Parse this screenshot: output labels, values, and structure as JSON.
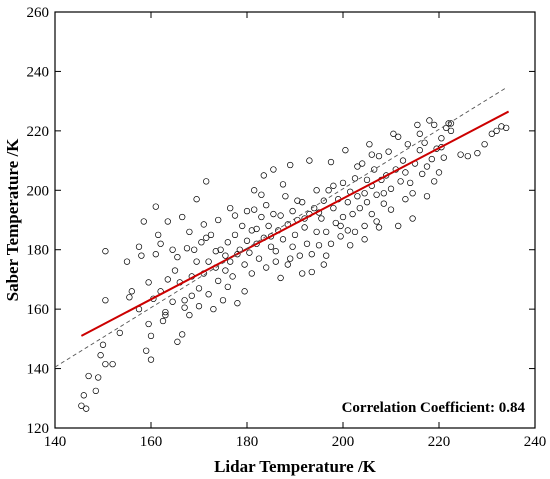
{
  "chart_data": {
    "type": "scatter",
    "title": "",
    "xlabel": "Lidar Temperature /K",
    "ylabel": "Saber Temperature /K",
    "xlim": [
      140,
      240
    ],
    "ylim": [
      120,
      260
    ],
    "xticks": [
      140,
      160,
      180,
      200,
      220,
      240
    ],
    "yticks": [
      120,
      140,
      160,
      180,
      200,
      220,
      240,
      260
    ],
    "grid": false,
    "legend": "none",
    "annotation": "Correlation Coefficient: 0.84",
    "series": [
      {
        "kind": "points",
        "marker": "open-circle",
        "color": "#000000",
        "points": [
          [
            145.5,
            127.5
          ],
          [
            146.0,
            131.0
          ],
          [
            146.5,
            126.5
          ],
          [
            147.0,
            137.5
          ],
          [
            148.5,
            132.5
          ],
          [
            149.0,
            137.0
          ],
          [
            149.5,
            144.5
          ],
          [
            150.0,
            148.0
          ],
          [
            150.5,
            163.0
          ],
          [
            150.5,
            179.5
          ],
          [
            152.0,
            141.5
          ],
          [
            153.5,
            152.0
          ],
          [
            155.0,
            176.0
          ],
          [
            156.0,
            166.0
          ],
          [
            157.5,
            160.0
          ],
          [
            157.5,
            181.0
          ],
          [
            158.0,
            178.0
          ],
          [
            159.0,
            146.0
          ],
          [
            159.5,
            155.0
          ],
          [
            159.5,
            169.0
          ],
          [
            160.0,
            143.0
          ],
          [
            160.0,
            151.0
          ],
          [
            160.5,
            163.5
          ],
          [
            161.0,
            194.5
          ],
          [
            161.5,
            185.0
          ],
          [
            162.0,
            166.0
          ],
          [
            162.0,
            182.0
          ],
          [
            162.5,
            156.0
          ],
          [
            163.0,
            159.0
          ],
          [
            163.5,
            170.0
          ],
          [
            163.5,
            189.5
          ],
          [
            164.5,
            180.0
          ],
          [
            164.5,
            162.5
          ],
          [
            165.5,
            149.0
          ],
          [
            165.0,
            173.0
          ],
          [
            166.0,
            169.0
          ],
          [
            166.5,
            191.0
          ],
          [
            167.0,
            160.5
          ],
          [
            167.0,
            163.0
          ],
          [
            167.5,
            180.5
          ],
          [
            168.0,
            158.0
          ],
          [
            168.0,
            186.0
          ],
          [
            168.5,
            171.0
          ],
          [
            169.0,
            180.0
          ],
          [
            169.5,
            176.0
          ],
          [
            169.5,
            197.0
          ],
          [
            170.0,
            161.0
          ],
          [
            170.0,
            167.0
          ],
          [
            170.5,
            182.5
          ],
          [
            171.0,
            172.0
          ],
          [
            171.0,
            188.5
          ],
          [
            171.5,
            203.0
          ],
          [
            172.0,
            165.0
          ],
          [
            172.0,
            176.0
          ],
          [
            172.5,
            185.0
          ],
          [
            173.0,
            160.0
          ],
          [
            173.5,
            174.0
          ],
          [
            174.0,
            169.5
          ],
          [
            174.0,
            190.0
          ],
          [
            174.5,
            180.0
          ],
          [
            175.0,
            163.0
          ],
          [
            175.5,
            178.0
          ],
          [
            176.0,
            167.5
          ],
          [
            176.0,
            182.5
          ],
          [
            176.5,
            176.0
          ],
          [
            176.5,
            194.0
          ],
          [
            177.0,
            171.0
          ],
          [
            177.5,
            185.0
          ],
          [
            178.0,
            178.5
          ],
          [
            178.0,
            162.0
          ],
          [
            178.5,
            180.0
          ],
          [
            179.0,
            188.0
          ],
          [
            179.5,
            175.0
          ],
          [
            180.0,
            183.0
          ],
          [
            180.0,
            193.0
          ],
          [
            180.5,
            179.0
          ],
          [
            181.0,
            186.5
          ],
          [
            181.0,
            172.0
          ],
          [
            181.5,
            200.0
          ],
          [
            182.0,
            182.0
          ],
          [
            182.0,
            187.0
          ],
          [
            182.5,
            177.0
          ],
          [
            183.0,
            191.0
          ],
          [
            183.5,
            184.0
          ],
          [
            183.5,
            205.0
          ],
          [
            184.0,
            174.0
          ],
          [
            184.0,
            195.0
          ],
          [
            184.5,
            188.0
          ],
          [
            185.0,
            181.0
          ],
          [
            185.5,
            192.0
          ],
          [
            185.5,
            207.0
          ],
          [
            186.0,
            176.0
          ],
          [
            186.5,
            186.5
          ],
          [
            187.0,
            191.5
          ],
          [
            187.0,
            170.5
          ],
          [
            187.5,
            183.5
          ],
          [
            188.0,
            198.0
          ],
          [
            188.5,
            175.0
          ],
          [
            188.5,
            188.5
          ],
          [
            189.0,
            208.5
          ],
          [
            189.5,
            193.0
          ],
          [
            189.5,
            181.0
          ],
          [
            190.0,
            185.0
          ],
          [
            190.5,
            190.0
          ],
          [
            191.0,
            178.0
          ],
          [
            191.5,
            196.0
          ],
          [
            191.5,
            172.0
          ],
          [
            192.0,
            187.5
          ],
          [
            192.5,
            182.0
          ],
          [
            193.0,
            192.0
          ],
          [
            193.0,
            210.0
          ],
          [
            193.5,
            178.5
          ],
          [
            194.0,
            194.0
          ],
          [
            194.5,
            186.0
          ],
          [
            194.5,
            200.0
          ],
          [
            195.0,
            181.5
          ],
          [
            195.5,
            190.5
          ],
          [
            196.0,
            196.5
          ],
          [
            196.0,
            175.0
          ],
          [
            196.5,
            186.0
          ],
          [
            197.0,
            200.0
          ],
          [
            197.5,
            182.0
          ],
          [
            197.5,
            209.5
          ],
          [
            198.0,
            194.0
          ],
          [
            198.5,
            189.0
          ],
          [
            199.0,
            197.0
          ],
          [
            199.5,
            184.5
          ],
          [
            200.0,
            202.5
          ],
          [
            200.0,
            191.0
          ],
          [
            200.5,
            213.5
          ],
          [
            201.0,
            196.0
          ],
          [
            201.0,
            186.5
          ],
          [
            201.5,
            199.5
          ],
          [
            202.0,
            192.0
          ],
          [
            202.5,
            204.0
          ],
          [
            202.5,
            186.0
          ],
          [
            203.0,
            198.0
          ],
          [
            203.5,
            194.0
          ],
          [
            204.0,
            209.0
          ],
          [
            204.5,
            199.0
          ],
          [
            204.5,
            188.0
          ],
          [
            205.0,
            203.5
          ],
          [
            205.0,
            196.0
          ],
          [
            205.5,
            215.5
          ],
          [
            206.0,
            201.5
          ],
          [
            206.0,
            192.0
          ],
          [
            206.5,
            207.0
          ],
          [
            207.0,
            198.5
          ],
          [
            207.5,
            211.5
          ],
          [
            207.5,
            187.5
          ],
          [
            208.0,
            203.5
          ],
          [
            208.5,
            195.5
          ],
          [
            209.0,
            205.0
          ],
          [
            209.5,
            213.0
          ],
          [
            210.0,
            200.5
          ],
          [
            210.5,
            219.0
          ],
          [
            211.0,
            207.0
          ],
          [
            211.5,
            188.0
          ],
          [
            212.0,
            203.0
          ],
          [
            212.5,
            210.0
          ],
          [
            213.0,
            197.0
          ],
          [
            213.5,
            215.5
          ],
          [
            214.0,
            202.5
          ],
          [
            214.5,
            190.5
          ],
          [
            215.0,
            209.0
          ],
          [
            215.5,
            222.0
          ],
          [
            216.0,
            213.5
          ],
          [
            216.5,
            205.5
          ],
          [
            217.0,
            216.0
          ],
          [
            217.5,
            198.0
          ],
          [
            218.0,
            223.5
          ],
          [
            218.5,
            210.5
          ],
          [
            219.0,
            222.0
          ],
          [
            219.5,
            214.0
          ],
          [
            220.0,
            206.0
          ],
          [
            220.5,
            217.5
          ],
          [
            221.0,
            211.0
          ],
          [
            221.5,
            221.0
          ],
          [
            222.0,
            222.5
          ],
          [
            222.5,
            220.0
          ],
          [
            224.5,
            212.0
          ],
          [
            226.0,
            211.5
          ],
          [
            228.0,
            212.5
          ],
          [
            229.5,
            215.5
          ],
          [
            231.0,
            219.0
          ],
          [
            232.0,
            220.0
          ],
          [
            233.0,
            221.5
          ],
          [
            234.0,
            221.0
          ],
          [
            150.5,
            141.5
          ],
          [
            155.5,
            164.0
          ],
          [
            158.5,
            189.5
          ],
          [
            161.0,
            178.5
          ],
          [
            163.0,
            158.0
          ],
          [
            165.5,
            177.5
          ],
          [
            166.5,
            151.5
          ],
          [
            168.5,
            164.5
          ],
          [
            171.5,
            184.0
          ],
          [
            173.5,
            179.5
          ],
          [
            175.5,
            173.0
          ],
          [
            177.5,
            191.5
          ],
          [
            179.5,
            166.0
          ],
          [
            181.5,
            193.5
          ],
          [
            183.0,
            198.5
          ],
          [
            185.0,
            184.5
          ],
          [
            186.0,
            179.5
          ],
          [
            187.5,
            202.0
          ],
          [
            189.0,
            177.0
          ],
          [
            190.5,
            196.5
          ],
          [
            192.0,
            190.5
          ],
          [
            193.5,
            172.5
          ],
          [
            195.0,
            192.5
          ],
          [
            196.5,
            178.0
          ],
          [
            198.0,
            201.5
          ],
          [
            199.5,
            188.0
          ],
          [
            201.5,
            181.5
          ],
          [
            203.0,
            208.0
          ],
          [
            204.5,
            183.5
          ],
          [
            206.0,
            212.0
          ],
          [
            207.0,
            189.5
          ],
          [
            208.5,
            199.0
          ],
          [
            210.0,
            193.5
          ],
          [
            211.5,
            218.0
          ],
          [
            213.0,
            206.0
          ],
          [
            214.5,
            199.0
          ],
          [
            216.0,
            219.0
          ],
          [
            217.5,
            208.0
          ],
          [
            219.0,
            203.0
          ],
          [
            220.5,
            214.5
          ],
          [
            222.5,
            222.5
          ]
        ]
      },
      {
        "kind": "line",
        "name": "",
        "style": "solid",
        "color": "#cc0000",
        "points": [
          [
            145.5,
            151.0
          ],
          [
            234.5,
            226.5
          ]
        ]
      },
      {
        "kind": "line",
        "name": "",
        "style": "dashed",
        "color": "#555555",
        "points": [
          [
            140.0,
            140.5
          ],
          [
            234.0,
            234.5
          ]
        ]
      }
    ]
  }
}
